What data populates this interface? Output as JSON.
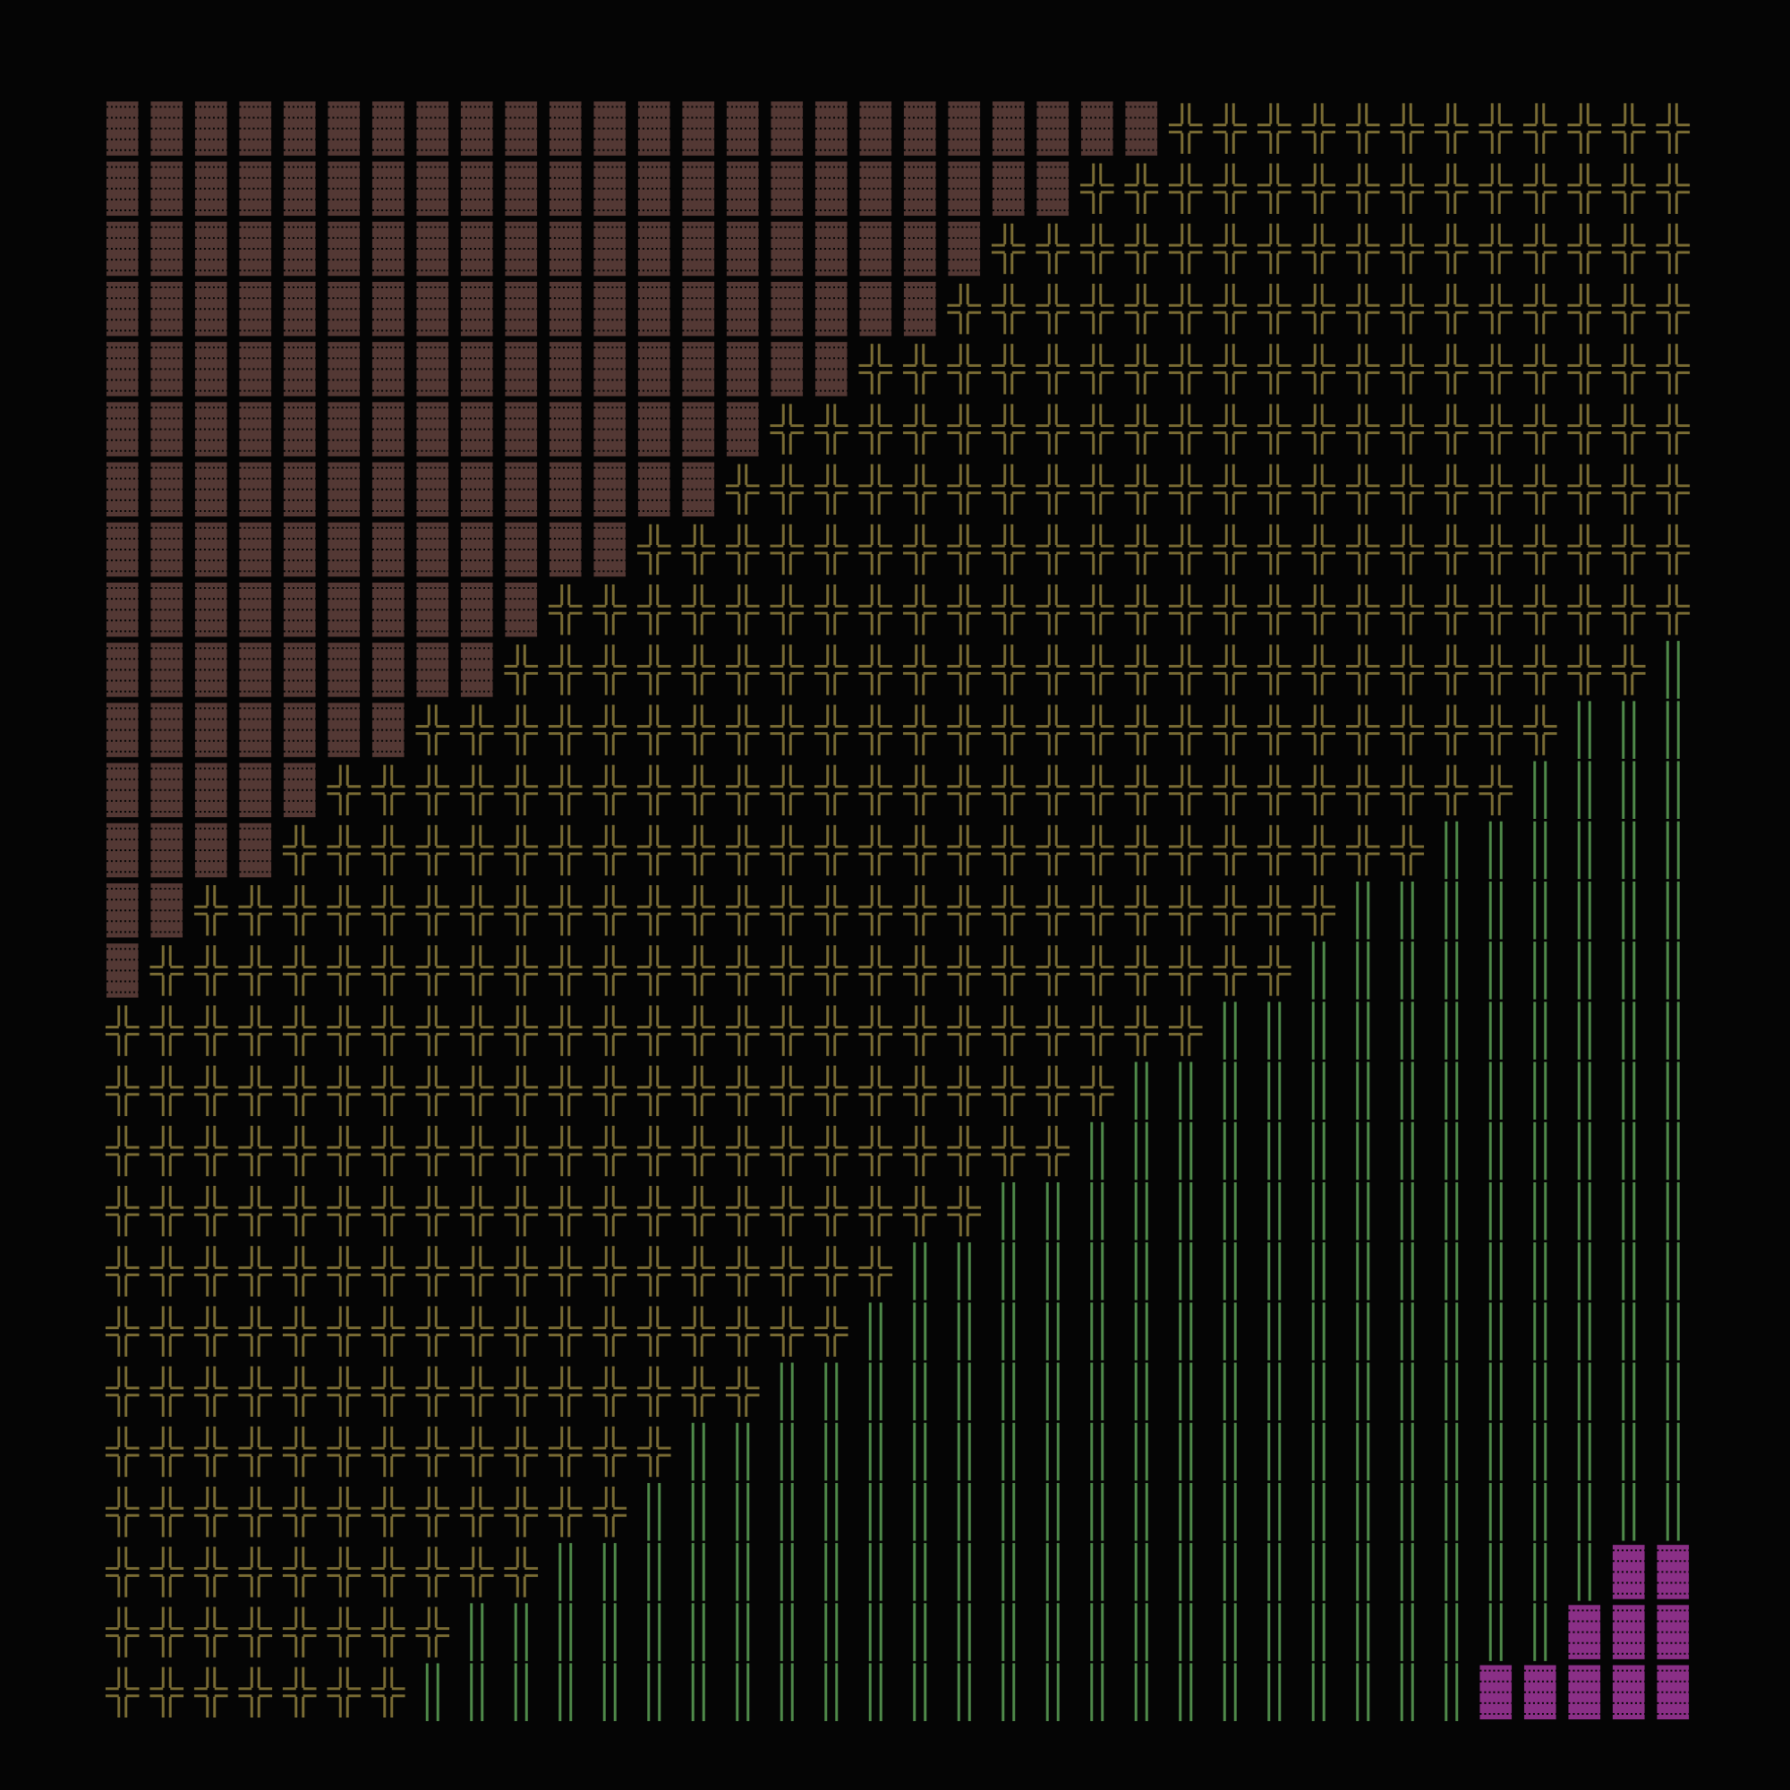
{
  "canvas": {
    "background": "#050505"
  },
  "grid": {
    "columns": 36,
    "rows": 27
  },
  "regions": [
    {
      "name": "shaded-block-region",
      "icon": "medium-shade-block-icon",
      "glyph": "▒",
      "color": "#6e4a44"
    },
    {
      "name": "cross-junction-region",
      "icon": "double-cross-junction-icon",
      "glyph": "╬",
      "color": "#7a6c34"
    },
    {
      "name": "vertical-double-line-region",
      "icon": "vertical-double-line-icon",
      "glyph": "║",
      "color": "#4f8a4a"
    },
    {
      "name": "magenta-block-region",
      "icon": "dark-shade-block-icon",
      "glyph": "▓",
      "color": "#8a2f86"
    }
  ]
}
